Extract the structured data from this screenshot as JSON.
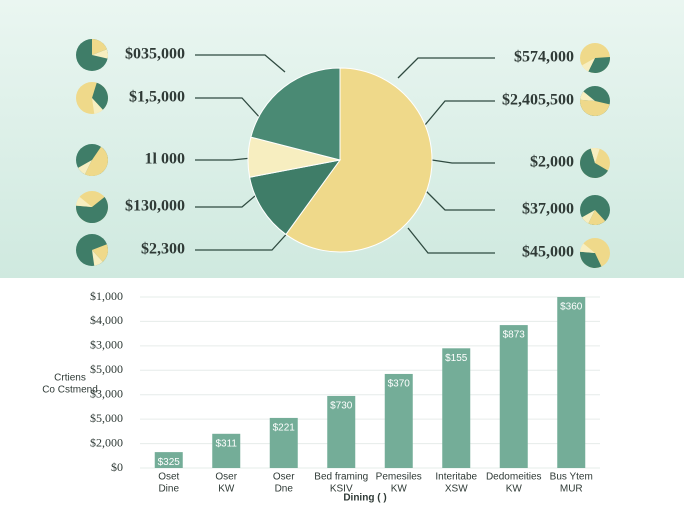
{
  "chart_data": [
    {
      "type": "pie",
      "values": [
        60,
        12,
        7,
        21
      ],
      "categories": [
        null,
        null,
        null,
        null
      ],
      "colors": [
        "#efd98a",
        "#3f7d68",
        "#f7eec0",
        "#4a8a74"
      ],
      "annotations_left": [
        "$035,000",
        "$1,5,000",
        "1l 000",
        "$130,000",
        "$2,300"
      ],
      "annotations_right": [
        "$574,000",
        "$2,405,500",
        "$2,000",
        "$37,000",
        "$45,000"
      ]
    },
    {
      "type": "bar",
      "categories": [
        [
          "Oset",
          "Dine"
        ],
        [
          "Oser",
          "KW"
        ],
        [
          "Oser",
          "Dne"
        ],
        [
          "Bed framing",
          "KSIV"
        ],
        [
          "Pemesiles",
          "KW"
        ],
        [
          "Interitabe",
          "XSW"
        ],
        [
          "Dedomeities",
          "KW"
        ],
        [
          "Bus Ytem",
          "MUR"
        ]
      ],
      "values": [
        0.65,
        1.4,
        2.05,
        2.95,
        3.85,
        4.9,
        5.85,
        7.0
      ],
      "bar_labels": [
        "$325",
        "$311",
        "$221",
        "$730",
        "$370",
        "$155",
        "$873",
        "$360"
      ],
      "color": "#74ad98",
      "ylim": [
        0,
        7
      ],
      "yticks": [
        {
          "value": 0,
          "label": "$0"
        },
        {
          "value": 1,
          "label": "$2,000"
        },
        {
          "value": 2,
          "label": "$5,000"
        },
        {
          "value": 3,
          "label": "$3,000"
        },
        {
          "value": 4,
          "label": "$5,000"
        },
        {
          "value": 5,
          "label": "$3,000"
        },
        {
          "value": 6,
          "label": "$4,000"
        },
        {
          "value": 7,
          "label": "$1,000"
        }
      ],
      "ylabel": [
        "Crtiens",
        "Co Cstmend"
      ],
      "xlabel": "Dining ( )",
      "grid": true
    }
  ]
}
